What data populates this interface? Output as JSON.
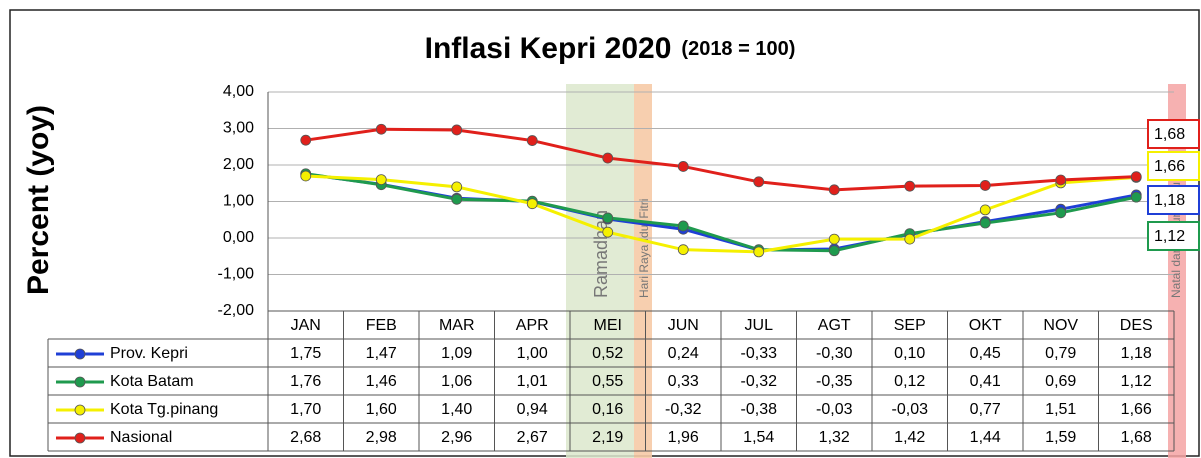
{
  "chart_data": {
    "type": "line",
    "title": "Inflasi Kepri 2020",
    "subtitle": "(2018 = 100)",
    "y_label": "Percent (yoy)",
    "categories": [
      "JAN",
      "FEB",
      "MAR",
      "APR",
      "MEI",
      "JUN",
      "JUL",
      "AGT",
      "SEP",
      "OKT",
      "NOV",
      "DES"
    ],
    "series": [
      {
        "name": "Prov. Kepri",
        "color": "#1f3fd6",
        "values": [
          1.75,
          1.47,
          1.09,
          1.0,
          0.52,
          0.24,
          -0.33,
          -0.3,
          0.1,
          0.45,
          0.79,
          1.18
        ],
        "value_labels": [
          "1,75",
          "1,47",
          "1,09",
          "1,00",
          "0,52",
          "0,24",
          "-0,33",
          "-0,30",
          "0,10",
          "0,45",
          "0,79",
          "1,18"
        ]
      },
      {
        "name": "Kota Batam",
        "color": "#1f9a4e",
        "values": [
          1.76,
          1.46,
          1.06,
          1.01,
          0.55,
          0.33,
          -0.32,
          -0.35,
          0.12,
          0.41,
          0.69,
          1.12
        ],
        "value_labels": [
          "1,76",
          "1,46",
          "1,06",
          "1,01",
          "0,55",
          "0,33",
          "-0,32",
          "-0,35",
          "0,12",
          "0,41",
          "0,69",
          "1,12"
        ]
      },
      {
        "name": "Kota Tg.pinang",
        "color": "#f5f000",
        "values": [
          1.7,
          1.6,
          1.4,
          0.94,
          0.16,
          -0.32,
          -0.38,
          -0.03,
          -0.03,
          0.77,
          1.51,
          1.66
        ],
        "value_labels": [
          "1,70",
          "1,60",
          "1,40",
          "0,94",
          "0,16",
          "-0,32",
          "-0,38",
          "-0,03",
          "-0,03",
          "0,77",
          "1,51",
          "1,66"
        ]
      },
      {
        "name": "Nasional",
        "color": "#e0201b",
        "values": [
          2.68,
          2.98,
          2.96,
          2.67,
          2.19,
          1.96,
          1.54,
          1.32,
          1.42,
          1.44,
          1.59,
          1.68
        ],
        "value_labels": [
          "2,68",
          "2,98",
          "2,96",
          "2,67",
          "2,19",
          "1,96",
          "1,54",
          "1,32",
          "1,42",
          "1,44",
          "1,59",
          "1,68"
        ]
      }
    ],
    "ylim": [
      -2,
      4
    ],
    "yticks": [
      {
        "value": -2,
        "label": "-2,00"
      },
      {
        "value": -1,
        "label": "-1,00"
      },
      {
        "value": 0,
        "label": "0,00"
      },
      {
        "value": 1,
        "label": "1,00"
      },
      {
        "value": 2,
        "label": "2,00"
      },
      {
        "value": 3,
        "label": "3,00"
      },
      {
        "value": 4,
        "label": "4,00"
      }
    ],
    "grid": true,
    "annotations": [
      "Ramadhan",
      "Hari Raya Idul Fitri",
      "Natal dan Tahun Baru"
    ]
  }
}
